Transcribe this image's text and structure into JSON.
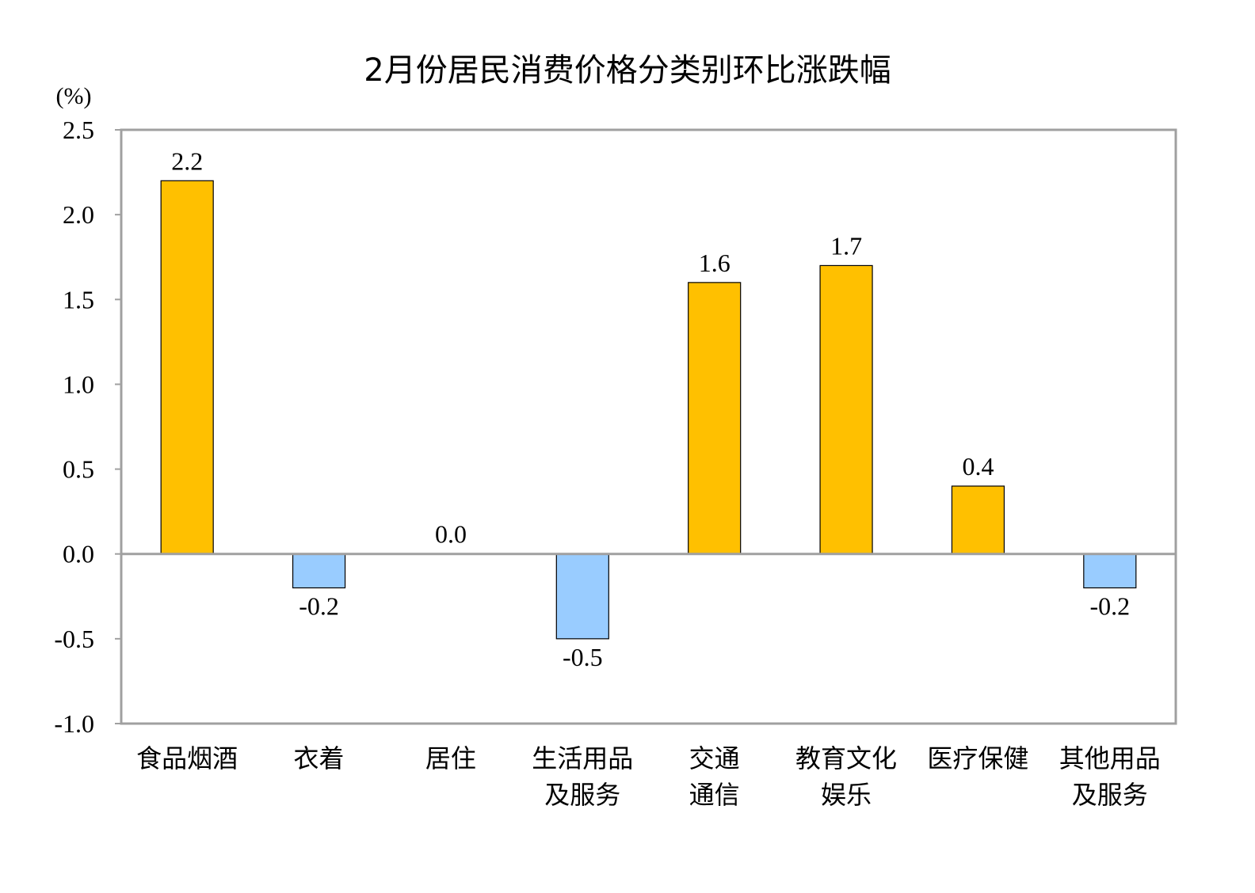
{
  "chart_data": {
    "type": "bar",
    "title": "2月份居民消费价格分类别环比涨跌幅",
    "unit_label": "(%)",
    "ylim": [
      -1.0,
      2.5
    ],
    "yticks": [
      "-1.0",
      "-0.5",
      "0.0",
      "0.5",
      "1.0",
      "1.5",
      "2.0",
      "2.5"
    ],
    "grid": false,
    "categories": [
      [
        "食品烟酒"
      ],
      [
        "衣着"
      ],
      [
        "居住"
      ],
      [
        "生活用品",
        "及服务"
      ],
      [
        "交通",
        "通信"
      ],
      [
        "教育文化",
        "娱乐"
      ],
      [
        "医疗保健"
      ],
      [
        "其他用品",
        "及服务"
      ]
    ],
    "values": [
      2.2,
      -0.2,
      0.0,
      -0.5,
      1.6,
      1.7,
      0.4,
      -0.2
    ],
    "data_labels": [
      "2.2",
      "-0.2",
      "0.0",
      "-0.5",
      "1.6",
      "1.7",
      "0.4",
      "-0.2"
    ],
    "colors": {
      "positive": "#FFC000",
      "negative": "#99CCFF",
      "bar_stroke": "#000000",
      "axis_frame": "#A0A0A0"
    }
  }
}
